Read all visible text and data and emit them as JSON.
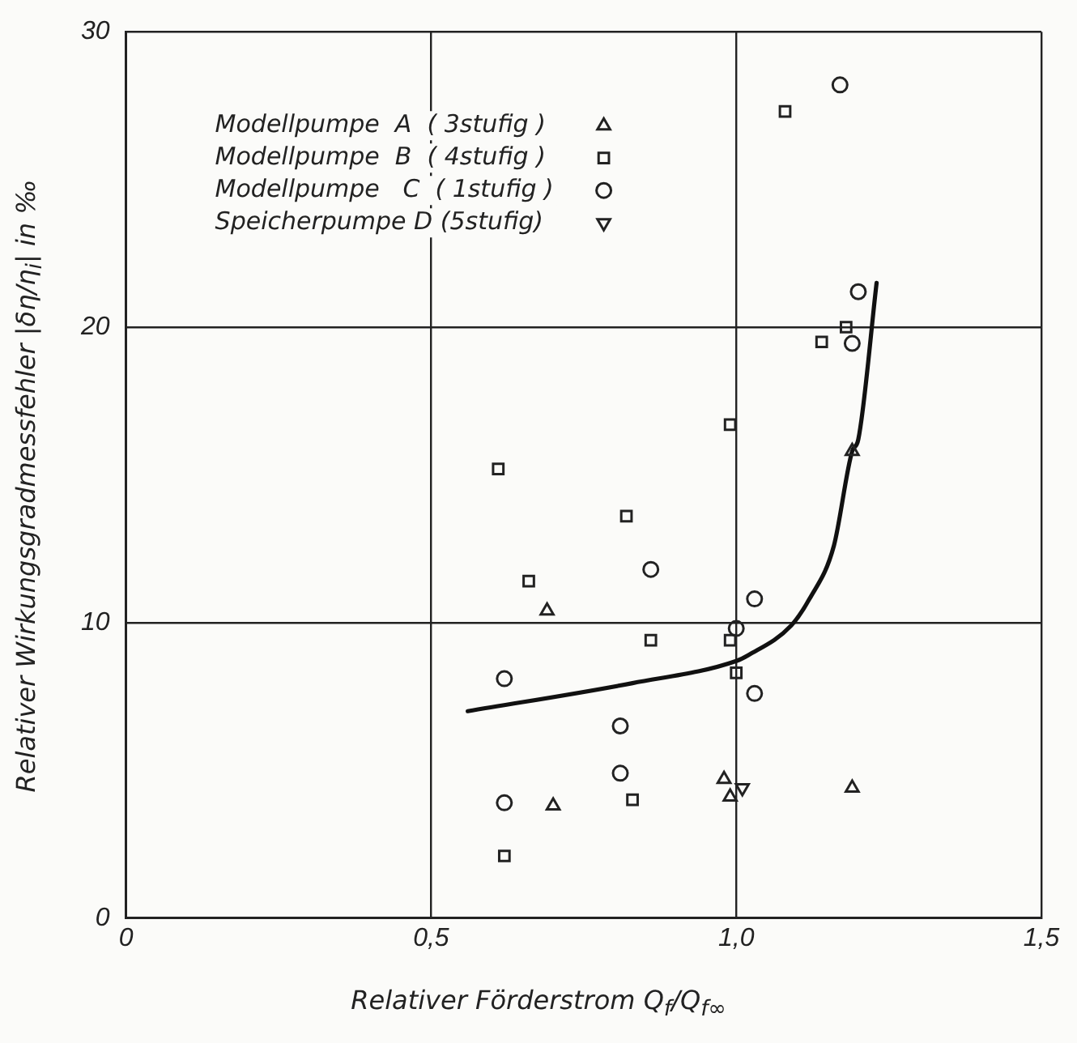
{
  "chart_data": {
    "type": "scatter",
    "xlabel": "Relativer  Förderstrom Q$_{f}$/Q$_{f∞}$",
    "ylabel": "Relativer Wirkungsgradmessfehler |δη/η$_{i}$| in ‰",
    "xlim": [
      0,
      1.5
    ],
    "xticks": [
      0,
      {
        "value": 0.5,
        "label": "0,5"
      },
      {
        "value": 1.0,
        "label": "1,0"
      },
      {
        "value": 1.5,
        "label": "1,5"
      }
    ],
    "ylim": [
      0,
      30
    ],
    "yticks": [
      0,
      10,
      20,
      30
    ],
    "grid": true,
    "legend": "top left",
    "series": [
      {
        "name": "Modellpumpe  A  ( 3stufig )",
        "color": "#222222",
        "marker": "triangle",
        "x": [
          1.19,
          0.69,
          0.98,
          0.99,
          1.19,
          0.7
        ],
        "values": [
          15.8,
          10.4,
          4.7,
          4.1,
          4.4,
          3.8
        ]
      },
      {
        "name": "Modellpumpe  B  ( 4stufig )",
        "color": "#222222",
        "marker": "square",
        "x": [
          1.08,
          1.18,
          1.14,
          0.99,
          0.61,
          0.82,
          0.66,
          0.86,
          0.99,
          1.0,
          0.83,
          0.62
        ],
        "values": [
          27.3,
          20.0,
          19.5,
          16.7,
          15.2,
          13.6,
          11.4,
          9.4,
          9.4,
          8.3,
          4.0,
          2.1
        ]
      },
      {
        "name": "Modellpumpe   C  ( 1stufig )",
        "color": "#222222",
        "marker": "circle",
        "x": [
          1.17,
          1.2,
          1.19,
          0.86,
          1.03,
          1.0,
          0.62,
          1.03,
          0.81,
          0.81,
          0.62
        ],
        "values": [
          28.2,
          21.2,
          19.45,
          11.8,
          10.8,
          9.8,
          8.1,
          7.6,
          6.5,
          4.9,
          3.9
        ]
      },
      {
        "name": "Speicherpumpe D (5stufig)",
        "color": "#222222",
        "marker": "triangle-down",
        "x": [
          1.01
        ],
        "values": [
          4.4
        ]
      },
      {
        "type": "line",
        "color": "#111111",
        "marker": "none",
        "x": [
          0.56,
          0.83,
          1.0,
          1.02,
          1.09,
          1.12,
          1.16,
          1.19,
          1.2,
          1.23
        ],
        "values": [
          7.0,
          7.95,
          8.7,
          8.9,
          9.9,
          10.8,
          12.6,
          15.8,
          16.2,
          21.5
        ]
      }
    ]
  }
}
